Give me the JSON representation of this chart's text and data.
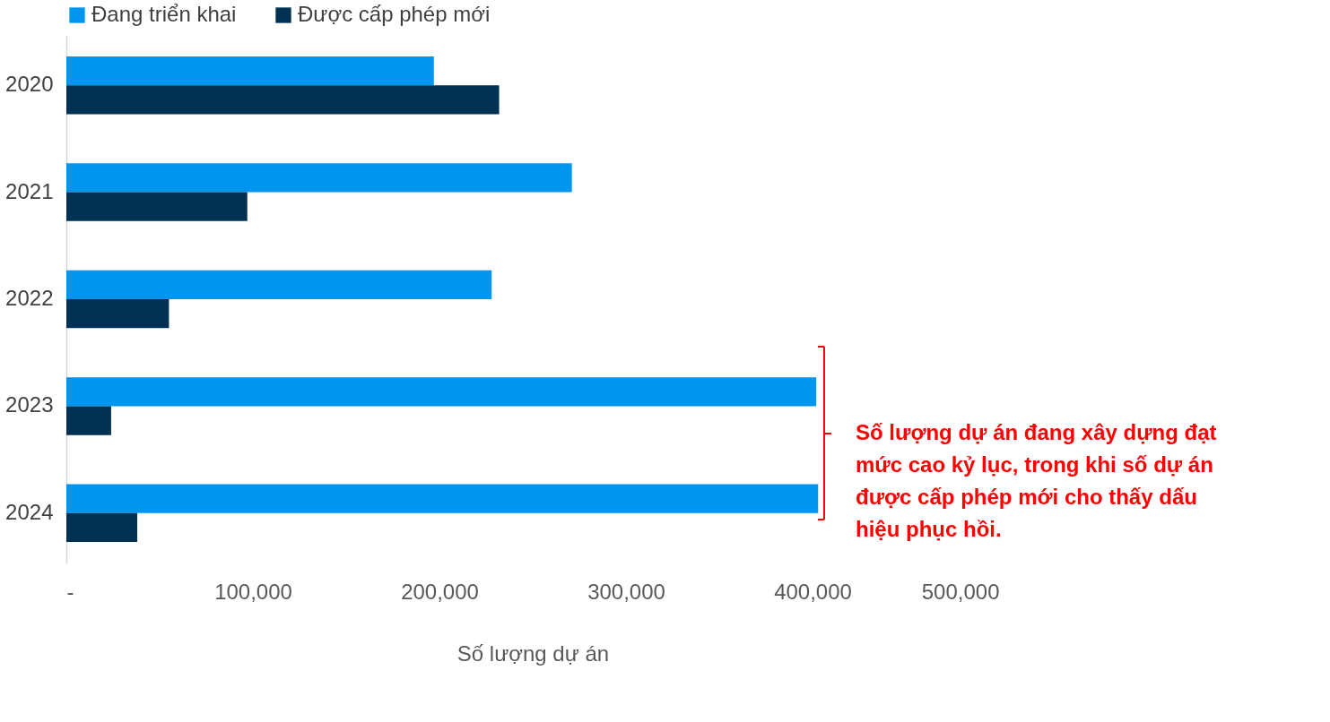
{
  "chart_data": {
    "type": "bar",
    "orientation": "horizontal",
    "xlabel": "Số lượng dự án",
    "categories": [
      "2020",
      "2021",
      "2022",
      "2023",
      "2024"
    ],
    "series": [
      {
        "name": "Đang triển khai",
        "color": "#0096f0",
        "values": [
          197000,
          271000,
          228000,
          402000,
          403000
        ]
      },
      {
        "name": "Được cấp phép mới",
        "color": "#003153",
        "values": [
          232000,
          97000,
          55000,
          24000,
          38000
        ]
      }
    ],
    "xlim": [
      0,
      500000
    ],
    "xticks": [
      {
        "value": 0,
        "label": "-"
      },
      {
        "value": 100000,
        "label": "100,000"
      },
      {
        "value": 200000,
        "label": "200,000"
      },
      {
        "value": 300000,
        "label": "300,000"
      },
      {
        "value": 400000,
        "label": "400,000"
      },
      {
        "value": 500000,
        "label": "500,000"
      }
    ],
    "legend": "top",
    "grid": false,
    "annotations": [
      "Số lượng dự án đang xây dựng đạt mức cao kỷ lục, trong khi số dự án được cấp phép mới cho thấy dấu hiệu phục hồi."
    ]
  }
}
